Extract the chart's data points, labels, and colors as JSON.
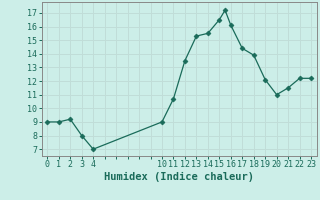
{
  "x": [
    0,
    1,
    2,
    3,
    4,
    10,
    11,
    12,
    13,
    14,
    15,
    15.5,
    16,
    17,
    18,
    19,
    20,
    21,
    22,
    23
  ],
  "y": [
    9,
    9,
    9.2,
    8,
    7,
    9,
    10.7,
    13.5,
    15.3,
    15.5,
    16.5,
    17.2,
    16.1,
    14.4,
    13.9,
    12.1,
    11.0,
    11.5,
    12.2,
    12.2
  ],
  "line_color": "#1a6b5a",
  "marker": "D",
  "marker_size": 2.5,
  "bg_color": "#cceee8",
  "grid_major_color": "#c0ddd8",
  "grid_minor_color": "#c0ddd8",
  "xlabel": "Humidex (Indice chaleur)",
  "xlabel_fontsize": 7.5,
  "xtick_labels": [
    "0",
    "1",
    "2",
    "3",
    "4",
    "10",
    "11",
    "12",
    "13",
    "14",
    "15",
    "16",
    "17",
    "18",
    "19",
    "20",
    "21",
    "22",
    "23"
  ],
  "xtick_positions": [
    0,
    1,
    2,
    3,
    4,
    10,
    11,
    12,
    13,
    14,
    15,
    16,
    17,
    18,
    19,
    20,
    21,
    22,
    23
  ],
  "ytick_labels": [
    "7",
    "8",
    "9",
    "10",
    "11",
    "12",
    "13",
    "14",
    "15",
    "16",
    "17"
  ],
  "ytick_positions": [
    7,
    8,
    9,
    10,
    11,
    12,
    13,
    14,
    15,
    16,
    17
  ],
  "ylim": [
    6.5,
    17.8
  ],
  "xlim": [
    -0.5,
    23.5
  ],
  "tick_fontsize": 6,
  "spine_color": "#888888"
}
